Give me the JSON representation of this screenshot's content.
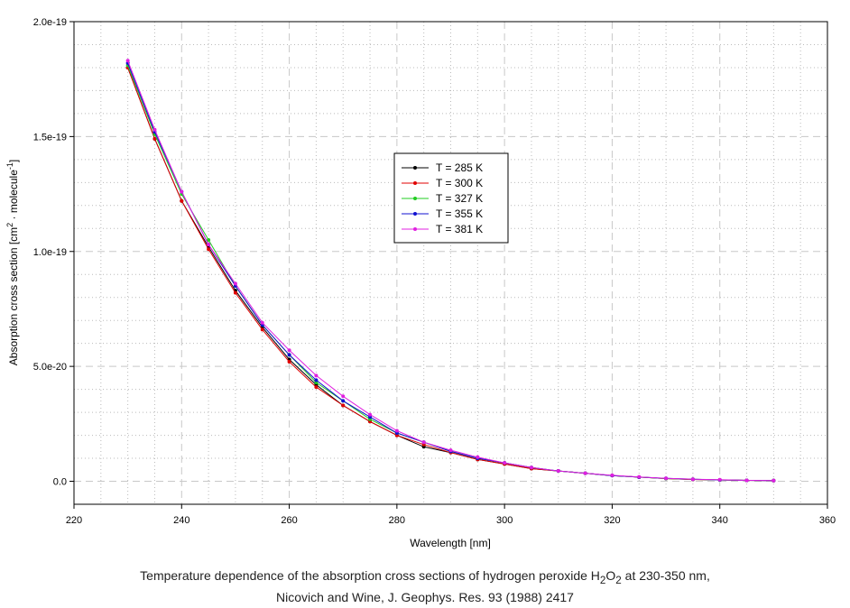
{
  "chart_data": {
    "type": "line",
    "xlabel": "Wavelength [nm]",
    "ylabel_parts": [
      "Absorption cross section [cm",
      "2",
      " · molecule",
      "-1",
      "]"
    ],
    "xlim": [
      220,
      360
    ],
    "ylim": [
      -1e-20,
      2e-19
    ],
    "x_ticks": [
      220,
      240,
      260,
      280,
      300,
      320,
      340,
      360
    ],
    "y_ticks": [
      0,
      5e-20,
      1e-19,
      1.5e-19,
      2e-19
    ],
    "x_tick_labels": [
      "220",
      "240",
      "260",
      "280",
      "300",
      "320",
      "340",
      "360"
    ],
    "y_tick_labels": [
      "0.0",
      "5.0e-20",
      "1.0e-19",
      "1.5e-19",
      "2.0e-19"
    ],
    "grid": true,
    "legend_position": "upper-center",
    "x": [
      230,
      235,
      240,
      245,
      250,
      255,
      260,
      265,
      270,
      275,
      280,
      285,
      290,
      295,
      300,
      305,
      310,
      315,
      320,
      325,
      330,
      335,
      340,
      345,
      350
    ],
    "series": [
      {
        "name": "T = 285 K",
        "color": "#000000",
        "values": [
          1.8e-19,
          1.49e-19,
          1.22e-19,
          1.02e-19,
          8.3e-20,
          6.7e-20,
          5.3e-20,
          4.2e-20,
          3.3e-20,
          2.6e-20,
          2e-20,
          1.5e-20,
          1.25e-20,
          9.5e-21,
          7.5e-21,
          5.5e-21,
          4.5e-21,
          3.5e-21,
          2.5e-21,
          1.8e-21,
          1.2e-21,
          8e-22,
          6e-22,
          4e-22,
          3e-22
        ]
      },
      {
        "name": "T = 300 K",
        "color": "#e00000",
        "values": [
          1.8e-19,
          1.49e-19,
          1.22e-19,
          1.01e-19,
          8.2e-20,
          6.6e-20,
          5.2e-20,
          4.1e-20,
          3.3e-20,
          2.6e-20,
          2e-20,
          1.6e-20,
          1.25e-20,
          9.5e-21,
          7.5e-21,
          5.5e-21,
          4.5e-21,
          3.5e-21,
          2.5e-21,
          1.8e-21,
          1.2e-21,
          8e-22,
          6e-22,
          4e-22,
          3e-22
        ]
      },
      {
        "name": "T = 327 K",
        "color": "#22cc22",
        "values": [
          1.81e-19,
          1.51e-19,
          1.25e-19,
          1.05e-19,
          8.5e-20,
          6.8e-20,
          5.5e-20,
          4.3e-20,
          3.5e-20,
          2.7e-20,
          2.1e-20,
          1.7e-20,
          1.3e-20,
          1e-20,
          8e-21,
          6e-21,
          4.5e-21,
          3.5e-21,
          2.5e-21,
          1.8e-21,
          1.2e-21,
          9e-22,
          6e-22,
          4e-22,
          3e-22
        ]
      },
      {
        "name": "T = 355 K",
        "color": "#1010d0",
        "values": [
          1.82e-19,
          1.52e-19,
          1.26e-19,
          1.03e-19,
          8.5e-20,
          6.8e-20,
          5.5e-20,
          4.4e-20,
          3.5e-20,
          2.8e-20,
          2.1e-20,
          1.7e-20,
          1.3e-20,
          1e-20,
          8e-21,
          6e-21,
          4.5e-21,
          3.5e-21,
          2.5e-21,
          1.8e-21,
          1.3e-21,
          9e-22,
          6e-22,
          4e-22,
          3e-22
        ]
      },
      {
        "name": "T = 381 K",
        "color": "#e020e0",
        "values": [
          1.83e-19,
          1.53e-19,
          1.26e-19,
          1.03e-19,
          8.6e-20,
          6.9e-20,
          5.7e-20,
          4.6e-20,
          3.7e-20,
          2.9e-20,
          2.2e-20,
          1.7e-20,
          1.35e-20,
          1.05e-20,
          8e-21,
          6e-21,
          4.5e-21,
          3.5e-21,
          2.6e-21,
          1.9e-21,
          1.3e-21,
          9e-22,
          7e-22,
          4e-22,
          3e-22
        ]
      }
    ]
  },
  "caption": {
    "line1_before": "Temperature dependence of the absorption cross sections of hydrogen peroxide H",
    "line1_sub1": "2",
    "line1_mid": "O",
    "line1_sub2": "2",
    "line1_after": " at 230-350 nm,",
    "line2": "Nicovich and Wine, J. Geophys. Res. 93 (1988) 2417"
  }
}
